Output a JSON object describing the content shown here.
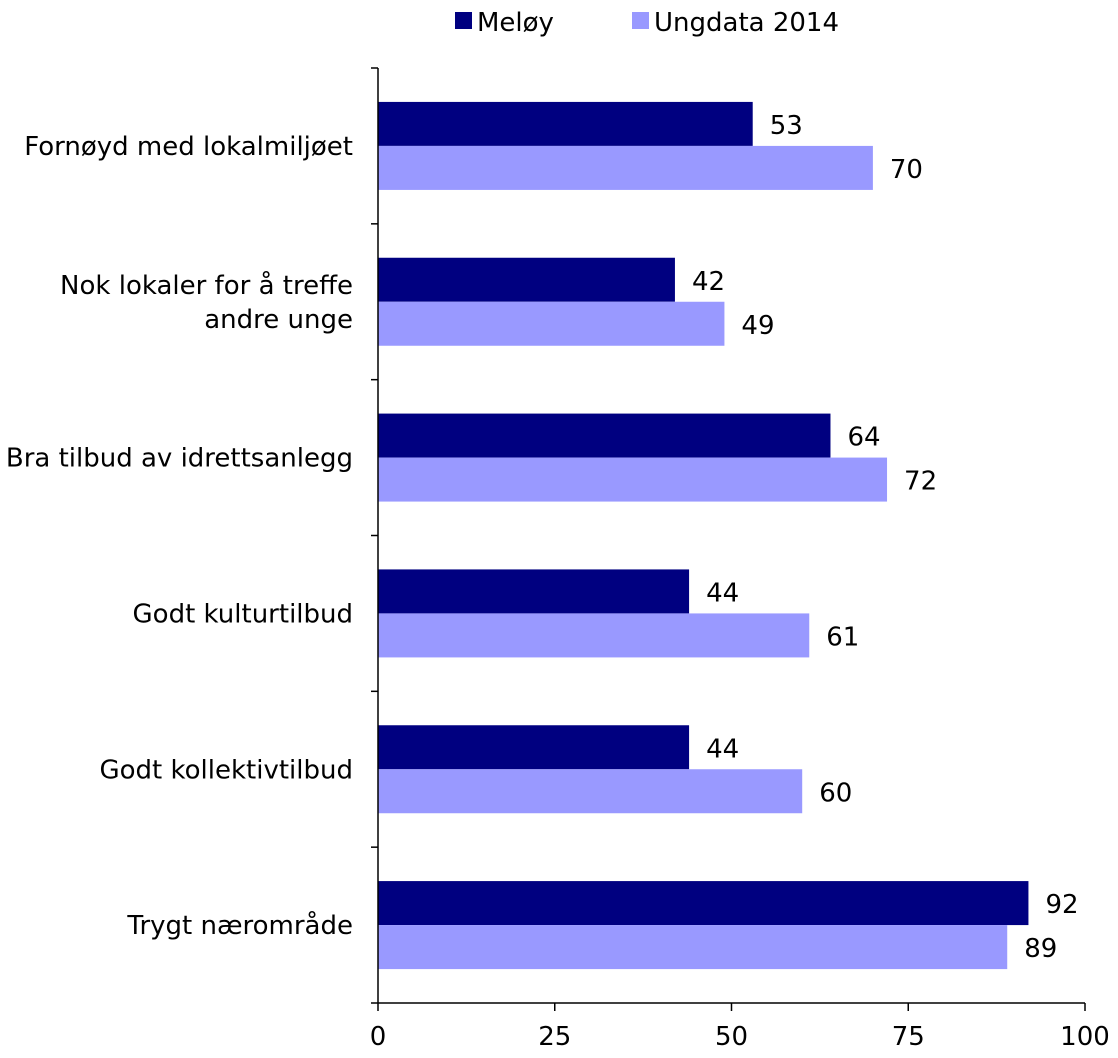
{
  "chart_data": {
    "type": "bar",
    "orientation": "horizontal",
    "categories": [
      [
        "Fornøyd med lokalmiljøet"
      ],
      [
        "Nok lokaler for å treffe",
        "andre unge"
      ],
      [
        "Bra tilbud av idrettsanlegg"
      ],
      [
        "Godt kulturtilbud"
      ],
      [
        "Godt kollektivtilbud"
      ],
      [
        "Trygt nærområde"
      ]
    ],
    "series": [
      {
        "name": "Meløy",
        "color": "#000080",
        "values": [
          53,
          42,
          64,
          44,
          44,
          92
        ]
      },
      {
        "name": "Ungdata 2014",
        "color": "#9999FF",
        "values": [
          70,
          49,
          72,
          61,
          60,
          89
        ]
      }
    ],
    "xlim": [
      0,
      100
    ],
    "xticks": [
      0,
      25,
      50,
      75,
      100
    ],
    "xlabel": "",
    "ylabel": "",
    "title": "",
    "grid": false,
    "legend_position": "top"
  }
}
